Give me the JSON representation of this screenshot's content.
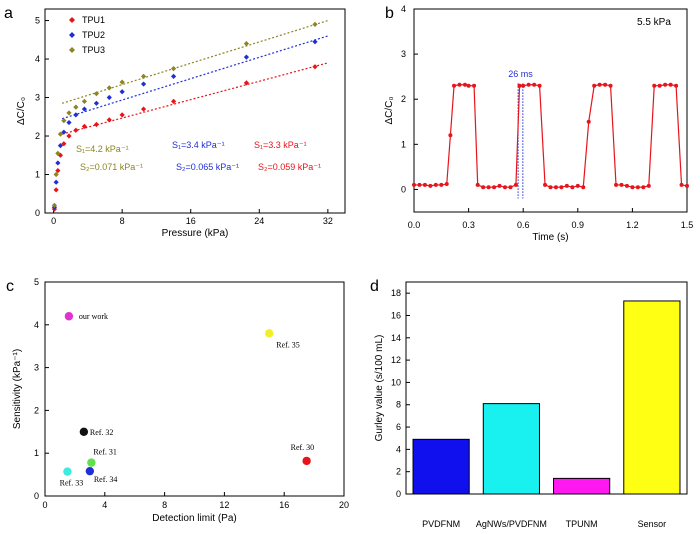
{
  "chart_data": [
    {
      "panel": "a",
      "type": "scatter",
      "xlabel": "Pressure (kPa)",
      "ylabel": "ΔC/C₀",
      "xlim": [
        -1,
        34
      ],
      "ylim": [
        0,
        5.3
      ],
      "xticks": [
        0,
        8,
        16,
        24,
        32
      ],
      "yticks": [
        0,
        1,
        2,
        3,
        4,
        5
      ],
      "legend": [
        "TPU1",
        "TPU2",
        "TPU3"
      ],
      "series": [
        {
          "name": "TPU1",
          "color": "#e8141c",
          "x": [
            0.1,
            0.3,
            0.5,
            0.8,
            1.2,
            1.8,
            2.6,
            3.6,
            5,
            6.5,
            8,
            10.5,
            14,
            22.5,
            30.5
          ],
          "y": [
            0.1,
            0.6,
            1.1,
            1.5,
            1.8,
            2.0,
            2.15,
            2.25,
            2.3,
            2.42,
            2.55,
            2.7,
            2.9,
            3.38,
            3.8
          ],
          "fit": {
            "x": [
              1,
              32
            ],
            "y": [
              2.05,
              3.9
            ]
          }
        },
        {
          "name": "TPU2",
          "color": "#1f2fd8",
          "x": [
            0.1,
            0.3,
            0.5,
            0.8,
            1.2,
            1.8,
            2.6,
            3.6,
            5,
            6.5,
            8,
            10.5,
            14,
            22.5,
            30.5
          ],
          "y": [
            0.15,
            0.8,
            1.3,
            1.75,
            2.1,
            2.35,
            2.55,
            2.7,
            2.85,
            3.0,
            3.15,
            3.35,
            3.55,
            4.05,
            4.45
          ],
          "fit": {
            "x": [
              1,
              32
            ],
            "y": [
              2.45,
              4.6
            ]
          }
        },
        {
          "name": "TPU3",
          "color": "#8c8520",
          "x": [
            0.1,
            0.3,
            0.5,
            0.8,
            1.2,
            1.8,
            2.6,
            3.6,
            5,
            6.5,
            8,
            10.5,
            14,
            22.5,
            30.5
          ],
          "y": [
            0.2,
            1.0,
            1.55,
            2.05,
            2.4,
            2.6,
            2.75,
            2.9,
            3.1,
            3.25,
            3.4,
            3.55,
            3.75,
            4.4,
            4.9
          ],
          "fit": {
            "x": [
              1,
              32
            ],
            "y": [
              2.85,
              5.0
            ]
          }
        }
      ],
      "annotations": [
        {
          "sens": "S₁=4.2 kPa⁻¹",
          "sens2": "S₂=0.071 kPa⁻¹",
          "color": "#8c8520"
        },
        {
          "sens": "S₁=3.4 kPa⁻¹",
          "sens2": "S₂=0.065 kPa⁻¹",
          "color": "#1f2fd8"
        },
        {
          "sens": "S₁=3.3 kPa⁻¹",
          "sens2": "S₂=0.059 kPa⁻¹",
          "color": "#e8141c"
        }
      ]
    },
    {
      "panel": "b",
      "type": "line",
      "xlabel": "Time (s)",
      "ylabel": "ΔC/C₀",
      "xlim": [
        0,
        1.5
      ],
      "ylim": [
        -0.5,
        4
      ],
      "xticks": [
        0.0,
        0.3,
        0.6,
        0.9,
        1.2,
        1.5
      ],
      "xticklabels": [
        "0.0",
        "0.3",
        "0.6",
        "0.9",
        "1.2",
        "1.5"
      ],
      "yticks": [
        0,
        1,
        2,
        3,
        4
      ],
      "title": "5.5 kPa",
      "annotation": "26 ms",
      "marker_lines_x": [
        0.572,
        0.598
      ],
      "color": "#e8141c",
      "x": [
        0.0,
        0.03,
        0.06,
        0.09,
        0.12,
        0.15,
        0.18,
        0.2,
        0.22,
        0.25,
        0.28,
        0.3,
        0.33,
        0.35,
        0.38,
        0.41,
        0.44,
        0.47,
        0.5,
        0.53,
        0.56,
        0.58,
        0.6,
        0.63,
        0.66,
        0.69,
        0.72,
        0.75,
        0.78,
        0.81,
        0.84,
        0.87,
        0.9,
        0.93,
        0.96,
        0.99,
        1.02,
        1.05,
        1.08,
        1.11,
        1.14,
        1.17,
        1.2,
        1.23,
        1.26,
        1.29,
        1.32,
        1.35,
        1.38,
        1.41,
        1.44,
        1.47,
        1.5
      ],
      "y": [
        0.1,
        0.1,
        0.1,
        0.08,
        0.1,
        0.1,
        0.12,
        1.2,
        2.3,
        2.32,
        2.32,
        2.3,
        2.3,
        0.1,
        0.05,
        0.05,
        0.05,
        0.08,
        0.05,
        0.05,
        0.1,
        2.3,
        2.3,
        2.32,
        2.32,
        2.3,
        0.1,
        0.05,
        0.05,
        0.05,
        0.08,
        0.05,
        0.08,
        0.05,
        1.5,
        2.3,
        2.32,
        2.32,
        2.3,
        0.1,
        0.1,
        0.08,
        0.05,
        0.05,
        0.05,
        0.08,
        2.3,
        2.3,
        2.32,
        2.32,
        2.3,
        0.1,
        0.08
      ]
    },
    {
      "panel": "c",
      "type": "scatter",
      "xlabel": "Detection limit (Pa)",
      "ylabel": "Sensitivity (kPa⁻¹)",
      "xlim": [
        0,
        20
      ],
      "ylim": [
        0,
        5
      ],
      "xticks": [
        0,
        4,
        8,
        12,
        16,
        20
      ],
      "yticks": [
        0,
        1,
        2,
        3,
        4,
        5
      ],
      "points": [
        {
          "label": "our work",
          "x": 1.6,
          "y": 4.2,
          "color": "#e033d0"
        },
        {
          "label": "Ref. 35",
          "x": 15.0,
          "y": 3.8,
          "color": "#f2ef28"
        },
        {
          "label": "Ref. 32",
          "x": 2.6,
          "y": 1.5,
          "color": "#111111"
        },
        {
          "label": "Ref. 31",
          "x": 3.1,
          "y": 0.78,
          "color": "#5fe04c"
        },
        {
          "label": "Ref. 30",
          "x": 17.5,
          "y": 0.82,
          "color": "#e8141c"
        },
        {
          "label": "Ref. 33",
          "x": 1.5,
          "y": 0.57,
          "color": "#3dece0"
        },
        {
          "label": "Ref. 34",
          "x": 3.0,
          "y": 0.58,
          "color": "#1f2fd8"
        }
      ]
    },
    {
      "panel": "d",
      "type": "bar",
      "ylabel": "Gurley value (s/100 mL)",
      "ylim": [
        0,
        19
      ],
      "yticks": [
        0,
        2,
        4,
        6,
        8,
        10,
        12,
        14,
        16,
        18
      ],
      "categories": [
        "PVDFNM",
        "AgNWs/PVDFNM",
        "TPUNM",
        "Sensor"
      ],
      "values": [
        4.9,
        8.1,
        1.4,
        17.3
      ],
      "colors": [
        "#1010ee",
        "#19f0f0",
        "#ff19f0",
        "#ffff14"
      ]
    }
  ]
}
